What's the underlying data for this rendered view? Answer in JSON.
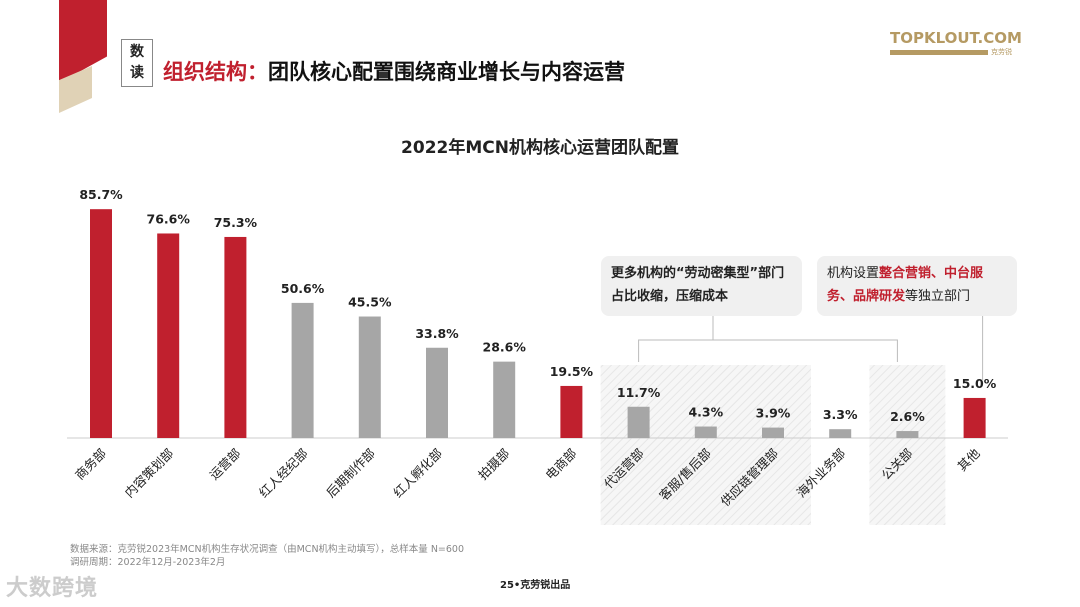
{
  "header": {
    "badge": [
      "数",
      "读"
    ],
    "title_prefix": "组织结构：",
    "title_main": "团队核心配置围绕商业增长与内容运营",
    "logo_text": "TOPKLOUT.COM",
    "logo_sub": "克劳锐"
  },
  "callouts": {
    "left": "更多机构的“劳动密集型”部门占比收缩，压缩成本",
    "right_prefix": "机构设置",
    "right_highlight1": "整合营销、中台服务、品牌研发",
    "right_suffix": "等独立部门"
  },
  "footer": {
    "source": "数据来源：克劳锐2023年MCN机构生存状况调查（由MCN机构主动填写），总样本量 N=600",
    "period": "调研周期：2022年12月-2023年2月",
    "watermark": "大数跨境",
    "page": "25•克劳锐出品"
  },
  "colors": {
    "red": "#c0202e",
    "gray": "#a6a6a6",
    "hatch": "#e6e6e6"
  },
  "chart_data": {
    "type": "bar",
    "title": "2022年MCN机构核心运营团队配置",
    "categories": [
      "商务部",
      "内容策划部",
      "运营部",
      "红人经纪部",
      "后期制作部",
      "红人孵化部",
      "拍摄部",
      "电商部",
      "代运营部",
      "客服/售后部",
      "供应链管理部",
      "海外业务部",
      "公关部",
      "其他"
    ],
    "values": [
      85.7,
      76.6,
      75.3,
      50.6,
      45.5,
      33.8,
      28.6,
      19.5,
      11.7,
      4.3,
      3.9,
      3.3,
      2.6,
      15.0
    ],
    "labels": [
      "85.7%",
      "76.6%",
      "75.3%",
      "50.6%",
      "45.5%",
      "33.8%",
      "28.6%",
      "19.5%",
      "11.7%",
      "4.3%",
      "3.9%",
      "3.3%",
      "2.6%",
      "15.0%"
    ],
    "highlight": [
      true,
      true,
      true,
      false,
      false,
      false,
      false,
      true,
      false,
      false,
      false,
      false,
      false,
      true
    ],
    "hatched_groups": [
      [
        8,
        10
      ],
      [
        12,
        12
      ]
    ],
    "unit": "%",
    "ylim": [
      0,
      100
    ],
    "grid": false,
    "legend": "none"
  }
}
